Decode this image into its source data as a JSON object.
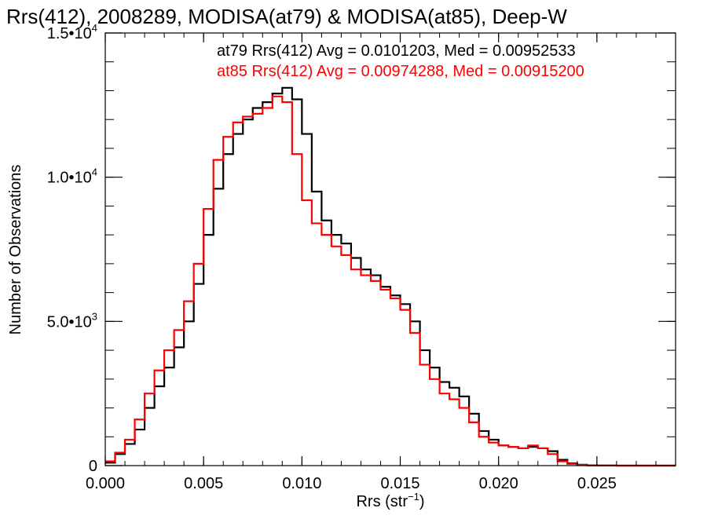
{
  "chart_data": {
    "type": "line",
    "title": "Rrs(412), 2008289, MODISA(at79) & MODISA(at85), Deep-W",
    "xlabel": "Rrs (str",
    "xlabel_sup": "−1",
    "xlabel_close": ")",
    "ylabel": "Number of Observations",
    "xlim": [
      0.0,
      0.029
    ],
    "ylim": [
      0,
      15000
    ],
    "grid": false,
    "x_ticks": [
      {
        "value": 0.0,
        "label": "0.000"
      },
      {
        "value": 0.005,
        "label": "0.005"
      },
      {
        "value": 0.01,
        "label": "0.010"
      },
      {
        "value": 0.015,
        "label": "0.015"
      },
      {
        "value": 0.02,
        "label": "0.020"
      },
      {
        "value": 0.025,
        "label": "0.025"
      }
    ],
    "y_ticks": [
      {
        "value": 0,
        "mantissa": "0",
        "exp": ""
      },
      {
        "value": 5000,
        "mantissa": "5.0•10",
        "exp": "3"
      },
      {
        "value": 10000,
        "mantissa": "1.0•10",
        "exp": "4"
      },
      {
        "value": 15000,
        "mantissa": "1.5•10",
        "exp": "4"
      }
    ],
    "annotations": [
      {
        "text": "at79 Rrs(412) Avg = 0.0101203, Med = 0.00952533",
        "color": "#000000"
      },
      {
        "text": "at85 Rrs(412) Avg = 0.00974288, Med = 0.00915200",
        "color": "#ff0000"
      }
    ],
    "series": [
      {
        "color": "#000000",
        "x": [
          0.0,
          0.0005,
          0.001,
          0.0015,
          0.002,
          0.0025,
          0.003,
          0.0035,
          0.004,
          0.0045,
          0.005,
          0.0055,
          0.006,
          0.0065,
          0.007,
          0.0075,
          0.008,
          0.0085,
          0.009,
          0.0095,
          0.01,
          0.0105,
          0.011,
          0.0115,
          0.012,
          0.0125,
          0.013,
          0.0135,
          0.014,
          0.0145,
          0.015,
          0.0155,
          0.016,
          0.0165,
          0.017,
          0.0175,
          0.018,
          0.0185,
          0.019,
          0.0195,
          0.02,
          0.0205,
          0.021,
          0.0215,
          0.022,
          0.0225,
          0.023,
          0.0235,
          0.024,
          0.0245,
          0.025,
          0.026,
          0.027,
          0.028,
          0.029
        ],
        "y": [
          100,
          400,
          750,
          1250,
          2000,
          2750,
          3400,
          4100,
          5000,
          6300,
          8000,
          9600,
          10800,
          11500,
          12000,
          12400,
          12600,
          12900,
          13100,
          12700,
          11500,
          9500,
          8500,
          8000,
          7700,
          7200,
          6800,
          6600,
          6200,
          5900,
          5600,
          5000,
          4000,
          3400,
          2900,
          2700,
          2400,
          1800,
          1200,
          900,
          700,
          650,
          600,
          650,
          600,
          500,
          200,
          80,
          30,
          10,
          5,
          0,
          0,
          0,
          0
        ]
      },
      {
        "color": "#ff0000",
        "x": [
          0.0,
          0.0005,
          0.001,
          0.0015,
          0.002,
          0.0025,
          0.003,
          0.0035,
          0.004,
          0.0045,
          0.005,
          0.0055,
          0.006,
          0.0065,
          0.007,
          0.0075,
          0.008,
          0.0085,
          0.009,
          0.0095,
          0.01,
          0.0105,
          0.011,
          0.0115,
          0.012,
          0.0125,
          0.013,
          0.0135,
          0.014,
          0.0145,
          0.015,
          0.0155,
          0.016,
          0.0165,
          0.017,
          0.0175,
          0.018,
          0.0185,
          0.019,
          0.0195,
          0.02,
          0.0205,
          0.021,
          0.0215,
          0.022,
          0.0225,
          0.023,
          0.0235,
          0.024,
          0.0245,
          0.025,
          0.026,
          0.027,
          0.028,
          0.029
        ],
        "y": [
          150,
          450,
          900,
          1600,
          2500,
          3300,
          4000,
          4700,
          5700,
          7000,
          8900,
          10600,
          11400,
          11900,
          12100,
          12200,
          12400,
          12800,
          12600,
          10800,
          9200,
          8400,
          8000,
          7600,
          7300,
          6800,
          6600,
          6400,
          6100,
          5800,
          5400,
          4600,
          3500,
          3000,
          2500,
          2300,
          2000,
          1500,
          1000,
          800,
          700,
          650,
          600,
          700,
          600,
          400,
          150,
          60,
          20,
          8,
          3,
          0,
          0,
          0,
          0
        ]
      }
    ]
  }
}
